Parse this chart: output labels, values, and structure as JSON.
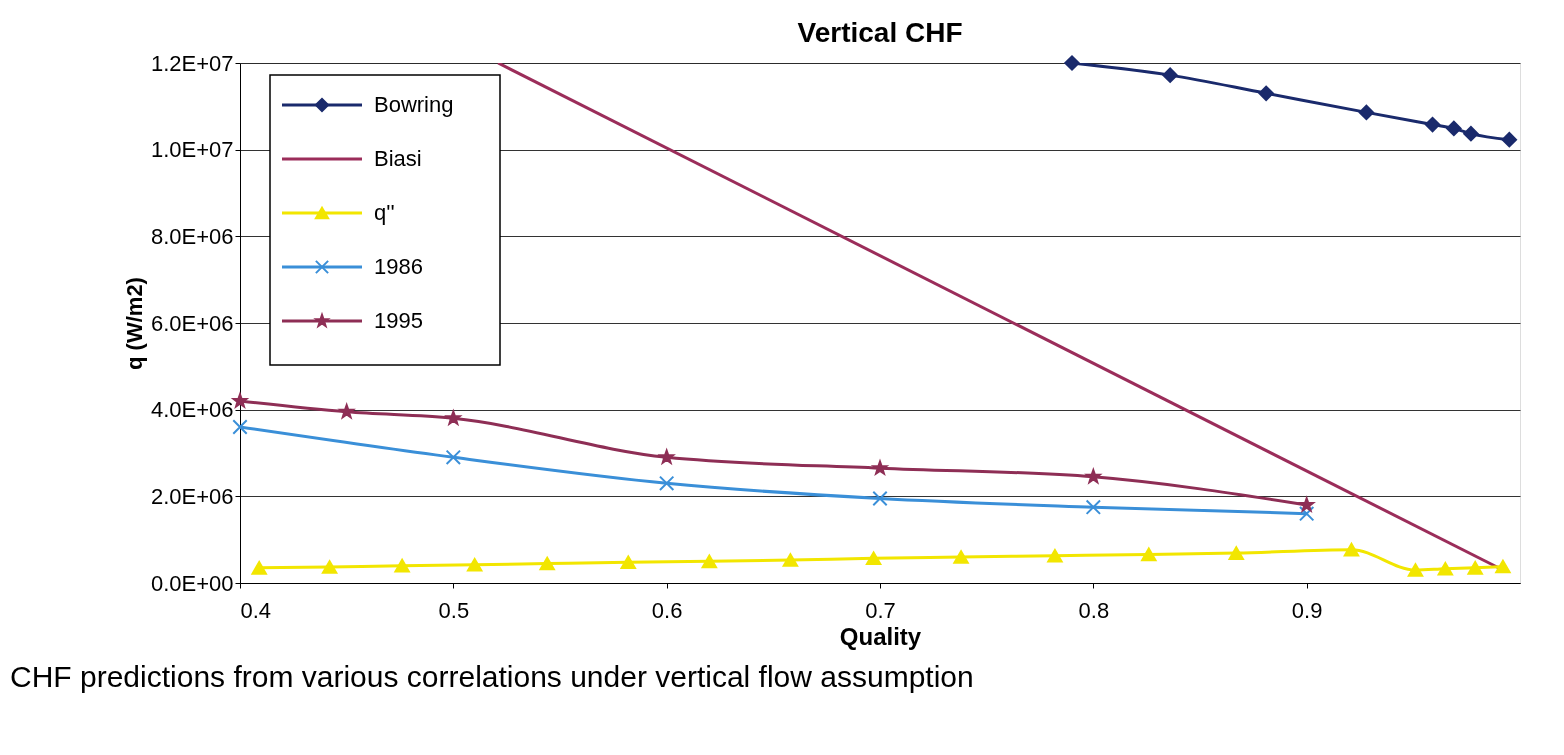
{
  "chart_data": {
    "type": "line",
    "title": "Vertical CHF",
    "xlabel": "Quality",
    "ylabel": "q (W/m2)",
    "xlim": [
      0.4,
      1.0
    ],
    "xticks": [
      0.4,
      0.5,
      0.6,
      0.7,
      0.8,
      0.9
    ],
    "ylim": [
      0,
      12000000
    ],
    "yticks": [
      {
        "value": 0,
        "label": "0.0E+00"
      },
      {
        "value": 2000000,
        "label": "2.0E+06"
      },
      {
        "value": 4000000,
        "label": "4.0E+06"
      },
      {
        "value": 6000000,
        "label": "6.0E+06"
      },
      {
        "value": 8000000,
        "label": "8.0E+06"
      },
      {
        "value": 10000000,
        "label": "1.0E+07"
      },
      {
        "value": 12000000,
        "label": "1.2E+07"
      }
    ],
    "grid": "y",
    "legend": "top left",
    "series": [
      {
        "name": "Bowring",
        "color": "#1a2a6c",
        "marker": "diamond",
        "x": [
          0.79,
          0.836,
          0.881,
          0.928,
          0.959,
          0.969,
          0.977,
          0.995
        ],
        "values": [
          12000000,
          11720000,
          11300000,
          10860000,
          10580000,
          10490000,
          10370000,
          10230000
        ]
      },
      {
        "name": "Biasi",
        "color": "#9b2d5a",
        "marker": "none",
        "x": [
          0.521,
          0.992
        ],
        "values": [
          12000000,
          300000
        ]
      },
      {
        "name": "q''",
        "color": "#f2e600",
        "marker": "triangle",
        "x": [
          0.409,
          0.442,
          0.476,
          0.51,
          0.544,
          0.582,
          0.62,
          0.658,
          0.697,
          0.738,
          0.782,
          0.826,
          0.867,
          0.921,
          0.951,
          0.965,
          0.979,
          0.992
        ],
        "values": [
          350000,
          370000,
          400000,
          420000,
          450000,
          480000,
          500000,
          530000,
          570000,
          600000,
          630000,
          660000,
          690000,
          770000,
          300000,
          330000,
          350000,
          380000
        ]
      },
      {
        "name": "1986",
        "color": "#3a8fd8",
        "marker": "cross",
        "x": [
          0.4,
          0.5,
          0.6,
          0.7,
          0.8,
          0.9
        ],
        "values": [
          3600000,
          2900000,
          2300000,
          1950000,
          1750000,
          1600000
        ]
      },
      {
        "name": "1995",
        "color": "#8e2e55",
        "marker": "star",
        "x": [
          0.4,
          0.45,
          0.5,
          0.6,
          0.7,
          0.8,
          0.9
        ],
        "values": [
          4200000,
          3950000,
          3800000,
          2900000,
          2650000,
          2450000,
          1800000
        ]
      }
    ],
    "annotations": [
      "CHF predictions from various correlations under vertical flow assumption"
    ]
  }
}
